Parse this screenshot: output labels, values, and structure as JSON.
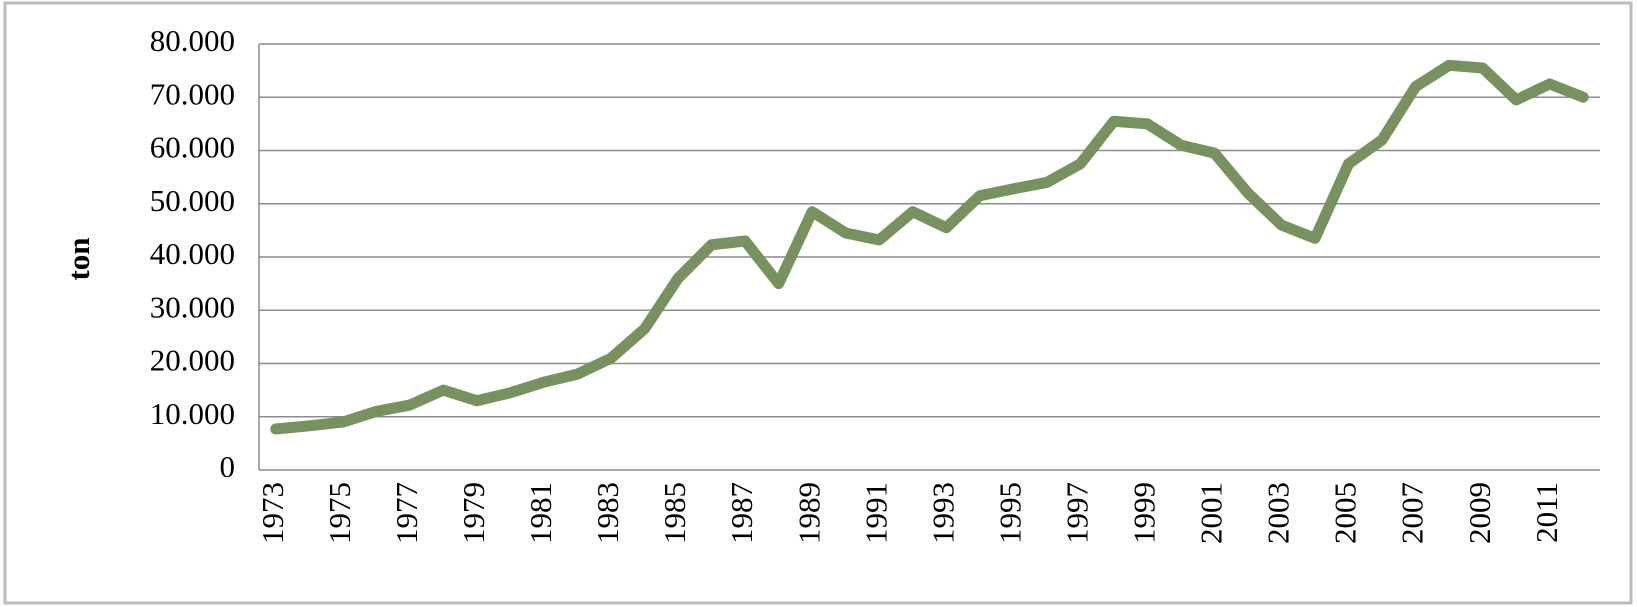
{
  "chart_data": {
    "type": "line",
    "y_label": "ton",
    "categories": [
      "1973",
      null,
      "1975",
      null,
      "1977",
      null,
      "1979",
      null,
      "1981",
      null,
      "1983",
      null,
      "1985",
      null,
      "1987",
      null,
      "1989",
      null,
      "1991",
      null,
      "1993",
      null,
      "1995",
      null,
      "1997",
      null,
      "1999",
      null,
      "2001",
      null,
      "2003",
      null,
      "2005",
      null,
      "2007",
      null,
      "2009",
      null,
      "2011",
      null
    ],
    "values": [
      7700,
      8300,
      9000,
      11000,
      12200,
      15000,
      13000,
      14500,
      16500,
      18000,
      21000,
      26500,
      36000,
      42300,
      43000,
      35000,
      48500,
      44500,
      43200,
      48500,
      45500,
      51500,
      52800,
      54000,
      57500,
      65500,
      65000,
      61000,
      59500,
      52000,
      46000,
      43500,
      57500,
      62000,
      72000,
      76000,
      75500,
      69500,
      72500,
      70000
    ],
    "color": "#77915f",
    "ylim": [
      0,
      80000
    ],
    "yticks": [
      0,
      {
        "value": 10000,
        "label": "10.000"
      },
      {
        "value": 20000,
        "label": "20.000"
      },
      {
        "value": 30000,
        "label": "30.000"
      },
      {
        "value": 40000,
        "label": "40.000"
      },
      {
        "value": 50000,
        "label": "50.000"
      },
      {
        "value": 60000,
        "label": "60.000"
      },
      {
        "value": 70000,
        "label": "70.000"
      },
      {
        "value": 80000,
        "label": "80.000"
      }
    ],
    "grid": true
  }
}
